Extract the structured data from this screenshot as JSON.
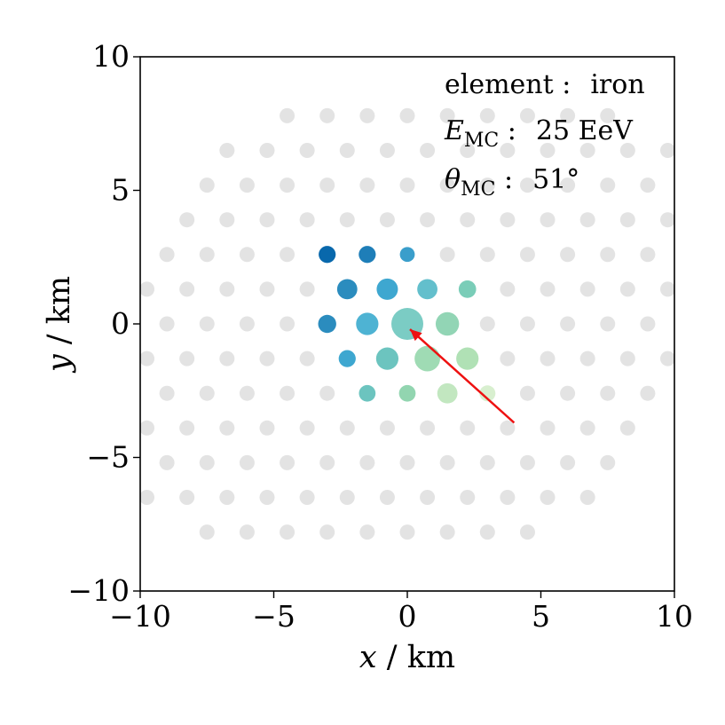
{
  "chart_data": {
    "type": "scatter",
    "title": "",
    "x_axis": {
      "label_var": "x",
      "label_sep": " / ",
      "label_unit": "km",
      "range": [
        -10,
        10
      ],
      "ticks": [
        -10,
        -5,
        0,
        5,
        10
      ]
    },
    "y_axis": {
      "label_var": "y",
      "label_sep": " / ",
      "label_unit": "km",
      "range": [
        -10,
        10
      ],
      "ticks": [
        -10,
        -5,
        0,
        5,
        10
      ]
    },
    "grid": false,
    "annotations": {
      "element": {
        "label": "element :",
        "value": "iron"
      },
      "energy": {
        "symbol": "E",
        "subscript": "MC",
        "colon": " :",
        "value": "25 EeV"
      },
      "zenith": {
        "symbol": "θ",
        "subscript": "MC",
        "colon": " :",
        "value": "51°"
      }
    },
    "arrow": {
      "from": [
        4.0,
        -3.7
      ],
      "to": [
        0.1,
        -0.2
      ],
      "color": "#ee1111"
    },
    "inactive_color": "#d9d9d9",
    "hex_grid": {
      "spacing_km": 1.5,
      "radius_km": 9.5
    },
    "active_stations": [
      {
        "x": -3.0,
        "y": 2.6,
        "size": 0.3,
        "color": "#0868ac"
      },
      {
        "x": -1.5,
        "y": 2.6,
        "size": 0.3,
        "color": "#1e7eb8"
      },
      {
        "x": 0.0,
        "y": 2.6,
        "size": 0.2,
        "color": "#3a9ecb"
      },
      {
        "x": -2.25,
        "y": 1.3,
        "size": 0.45,
        "color": "#2b8cbe"
      },
      {
        "x": -0.75,
        "y": 1.3,
        "size": 0.5,
        "color": "#3ea7d0"
      },
      {
        "x": 0.75,
        "y": 1.3,
        "size": 0.45,
        "color": "#63bfcc"
      },
      {
        "x": 2.25,
        "y": 1.3,
        "size": 0.32,
        "color": "#7acdb8"
      },
      {
        "x": -3.0,
        "y": 0.0,
        "size": 0.35,
        "color": "#2b8cbe"
      },
      {
        "x": -1.5,
        "y": 0.0,
        "size": 0.55,
        "color": "#4eb3d3"
      },
      {
        "x": 0.0,
        "y": 0.0,
        "size": 1.0,
        "color": "#7bccc4"
      },
      {
        "x": 1.5,
        "y": 0.0,
        "size": 0.6,
        "color": "#92d5b5"
      },
      {
        "x": -2.25,
        "y": -1.3,
        "size": 0.3,
        "color": "#3ea7d0"
      },
      {
        "x": -0.75,
        "y": -1.3,
        "size": 0.55,
        "color": "#6cc4bf"
      },
      {
        "x": 0.75,
        "y": -1.3,
        "size": 0.7,
        "color": "#9fdbb4"
      },
      {
        "x": 2.25,
        "y": -1.3,
        "size": 0.55,
        "color": "#b0e1b5"
      },
      {
        "x": -1.5,
        "y": -2.6,
        "size": 0.28,
        "color": "#6cc4bf"
      },
      {
        "x": 0.0,
        "y": -2.6,
        "size": 0.28,
        "color": "#92d5b0"
      },
      {
        "x": 1.5,
        "y": -2.6,
        "size": 0.45,
        "color": "#c2e7c0"
      },
      {
        "x": 3.0,
        "y": -2.6,
        "size": 0.25,
        "color": "#d8efcf"
      }
    ]
  }
}
